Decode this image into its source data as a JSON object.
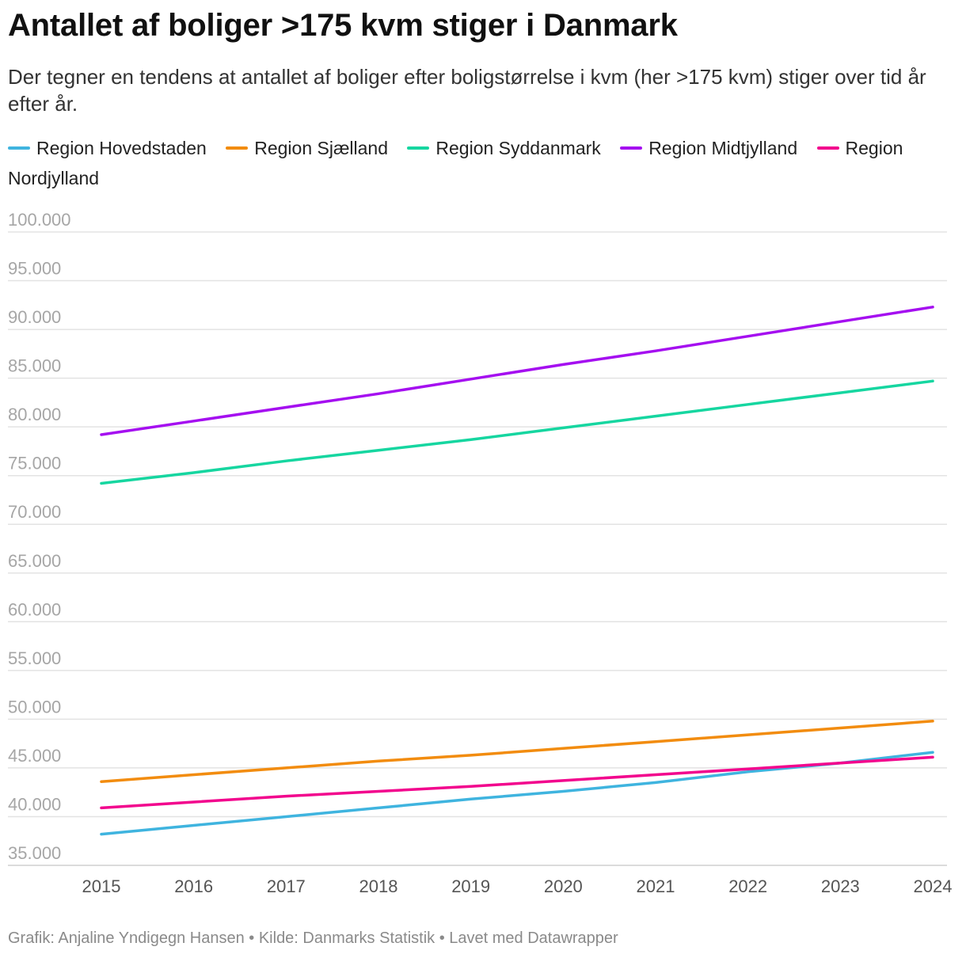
{
  "chart_data": {
    "type": "line",
    "title": "Antallet af boliger >175 kvm stiger i Danmark",
    "subtitle": "Der tegner en tendens at antallet af boliger efter boligstørrelse i kvm (her >175 kvm) stiger over tid år efter år.",
    "x": [
      "2015",
      "2016",
      "2017",
      "2018",
      "2019",
      "2020",
      "2021",
      "2022",
      "2023",
      "2024"
    ],
    "y_ticks": [
      35000,
      40000,
      45000,
      50000,
      55000,
      60000,
      65000,
      70000,
      75000,
      80000,
      85000,
      90000,
      95000,
      100000
    ],
    "y_tick_labels": [
      "35.000",
      "40.000",
      "45.000",
      "50.000",
      "55.000",
      "60.000",
      "65.000",
      "70.000",
      "75.000",
      "80.000",
      "85.000",
      "90.000",
      "95.000",
      "100.000"
    ],
    "ylim": [
      35000,
      100000
    ],
    "grid": true,
    "legend_position": "top",
    "series": [
      {
        "name": "Region Hovedstaden",
        "color": "#3fb4df",
        "values": [
          38200,
          39100,
          40000,
          40900,
          41800,
          42600,
          43500,
          44600,
          45500,
          46600
        ]
      },
      {
        "name": "Region Sjælland",
        "color": "#f28c0f",
        "values": [
          43600,
          44300,
          45000,
          45700,
          46300,
          47000,
          47700,
          48400,
          49100,
          49800
        ]
      },
      {
        "name": "Region Syddanmark",
        "color": "#16d6a0",
        "values": [
          74200,
          75300,
          76500,
          77600,
          78700,
          79900,
          81100,
          82300,
          83500,
          84700
        ]
      },
      {
        "name": "Region Midtjylland",
        "color": "#a50ff0",
        "values": [
          79200,
          80600,
          82000,
          83400,
          84900,
          86400,
          87800,
          89300,
          90800,
          92300
        ]
      },
      {
        "name": "Region Nordjylland",
        "color": "#f2058d",
        "values": [
          40900,
          41500,
          42100,
          42600,
          43100,
          43700,
          44300,
          44900,
          45500,
          46100
        ]
      }
    ]
  },
  "footer": {
    "text": "Grafik: Anjaline Yndigegn Hansen • Kilde: Danmarks Statistik • Lavet med Datawrapper"
  }
}
